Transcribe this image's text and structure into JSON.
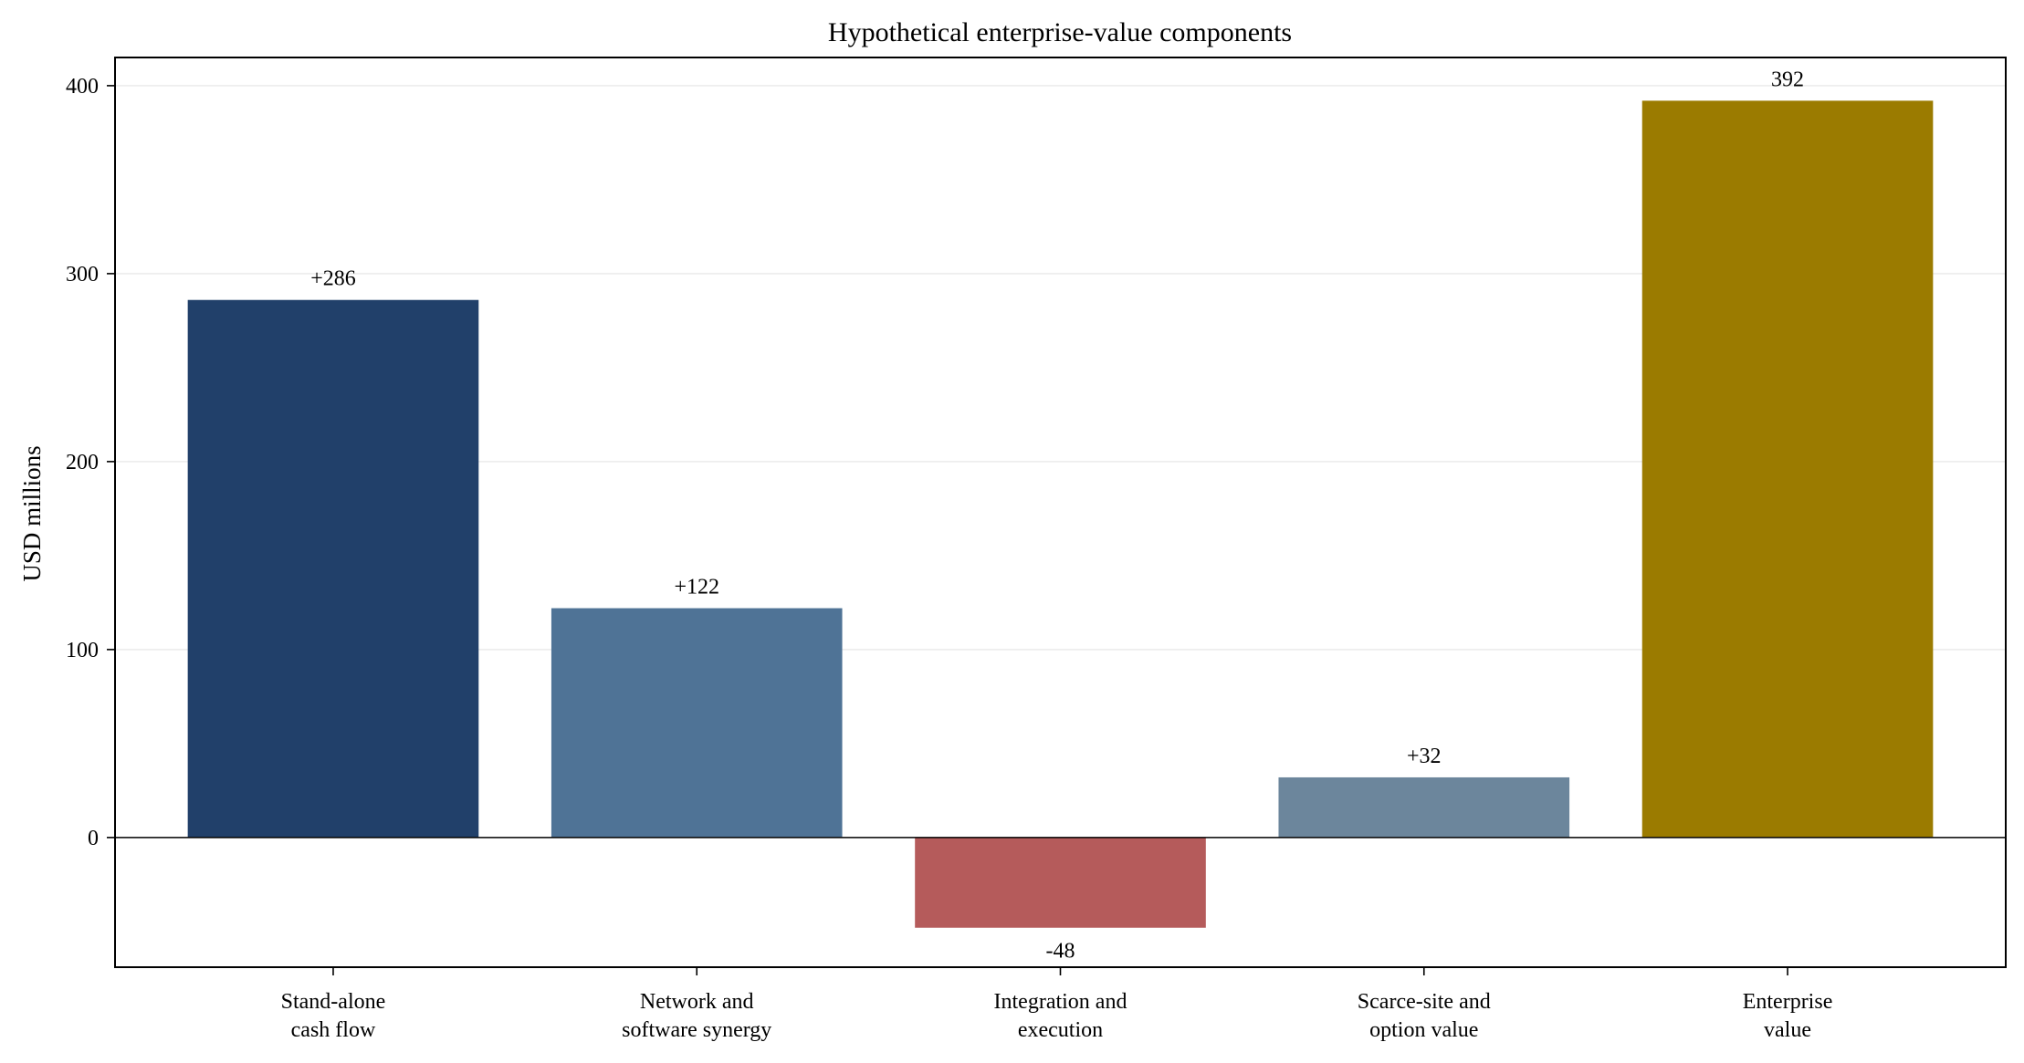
{
  "chart_data": {
    "type": "bar",
    "title": "Hypothetical enterprise-value components",
    "xlabel": "",
    "ylabel": "USD millions",
    "ylim": [
      -69,
      415
    ],
    "yticks": [
      0,
      100,
      200,
      300,
      400
    ],
    "grid": "horizontal",
    "legend": "none",
    "categories": [
      [
        "Stand-alone",
        "cash flow"
      ],
      [
        "Network and",
        "software synergy"
      ],
      [
        "Integration and",
        "execution"
      ],
      [
        "Scarce-site and",
        "option value"
      ],
      [
        "Enterprise",
        "value"
      ]
    ],
    "values": [
      286,
      122,
      -48,
      32,
      392
    ],
    "data_labels": [
      "+286",
      "+122",
      "-48",
      "+32",
      "392"
    ],
    "colors": [
      "#21406a",
      "#4f7396",
      "#b55b5b",
      "#6c869c",
      "#9b7b00"
    ]
  }
}
